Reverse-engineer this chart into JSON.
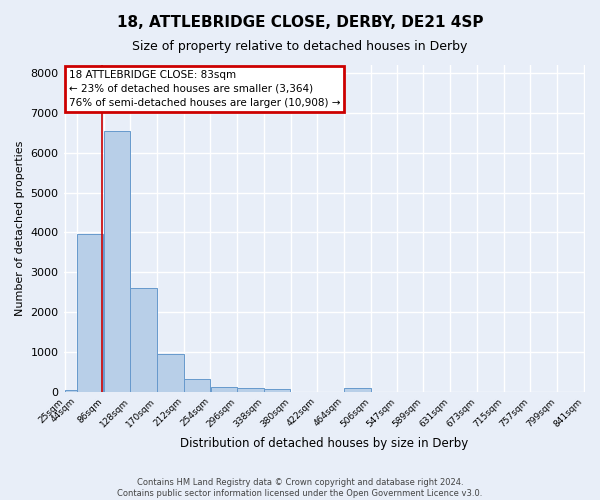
{
  "title": "18, ATTLEBRIDGE CLOSE, DERBY, DE21 4SP",
  "subtitle": "Size of property relative to detached houses in Derby",
  "xlabel": "Distribution of detached houses by size in Derby",
  "ylabel": "Number of detached properties",
  "footer_line1": "Contains HM Land Registry data © Crown copyright and database right 2024.",
  "footer_line2": "Contains public sector information licensed under the Open Government Licence v3.0.",
  "annotation_line1": "18 ATTLEBRIDGE CLOSE: 83sqm",
  "annotation_line2": "← 23% of detached houses are smaller (3,364)",
  "annotation_line3": "76% of semi-detached houses are larger (10,908) →",
  "property_size": 83,
  "bin_edges": [
    25,
    44,
    86,
    128,
    170,
    212,
    254,
    296,
    338,
    380,
    422,
    464,
    506,
    547,
    589,
    631,
    673,
    715,
    757,
    799,
    841
  ],
  "bar_heights": [
    50,
    3950,
    6550,
    2600,
    950,
    320,
    120,
    100,
    60,
    0,
    0,
    100,
    0,
    0,
    0,
    0,
    0,
    0,
    0,
    0
  ],
  "bar_color": "#b8cfe8",
  "bar_edge_color": "#6699cc",
  "redline_color": "#cc0000",
  "annotation_box_color": "#cc0000",
  "background_color": "#e8eef8",
  "grid_color": "#ffffff",
  "ylim": [
    0,
    8200
  ],
  "yticks": [
    0,
    1000,
    2000,
    3000,
    4000,
    5000,
    6000,
    7000,
    8000
  ]
}
